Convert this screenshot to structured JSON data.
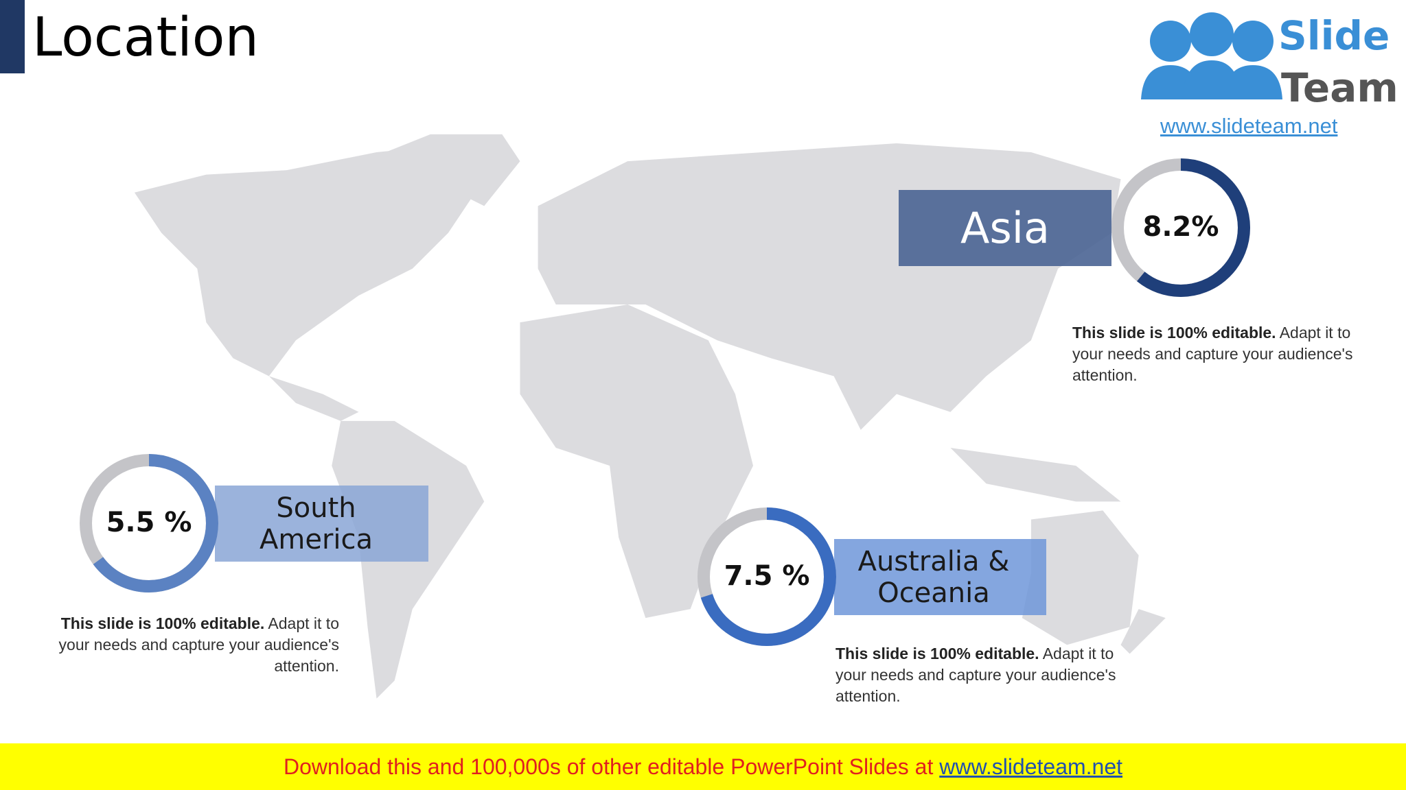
{
  "header": {
    "title": "Location"
  },
  "logo": {
    "line1": "Slide",
    "line2": "Team",
    "url": "www.slideteam.net"
  },
  "callouts": [
    {
      "label": "Asia",
      "value": "8.2%",
      "description": {
        "bold": "This slide is 100% editable.",
        "text": "Adapt it to your needs and capture your audience's attention."
      }
    },
    {
      "label": "South America",
      "value": "5.5 %",
      "description": {
        "bold": "This slide is 100% editable.",
        "text": "Adapt it to your needs and capture your audience's attention."
      }
    },
    {
      "label": "Australia & Oceania",
      "value": "7.5 %",
      "description": {
        "bold": "This slide is 100% editable.",
        "text": "Adapt it to your needs and capture your audience's attention."
      }
    }
  ],
  "footer": {
    "text": "Download this and 100,000s of other editable PowerPoint Slides at",
    "link": "www.slideteam.net"
  }
}
